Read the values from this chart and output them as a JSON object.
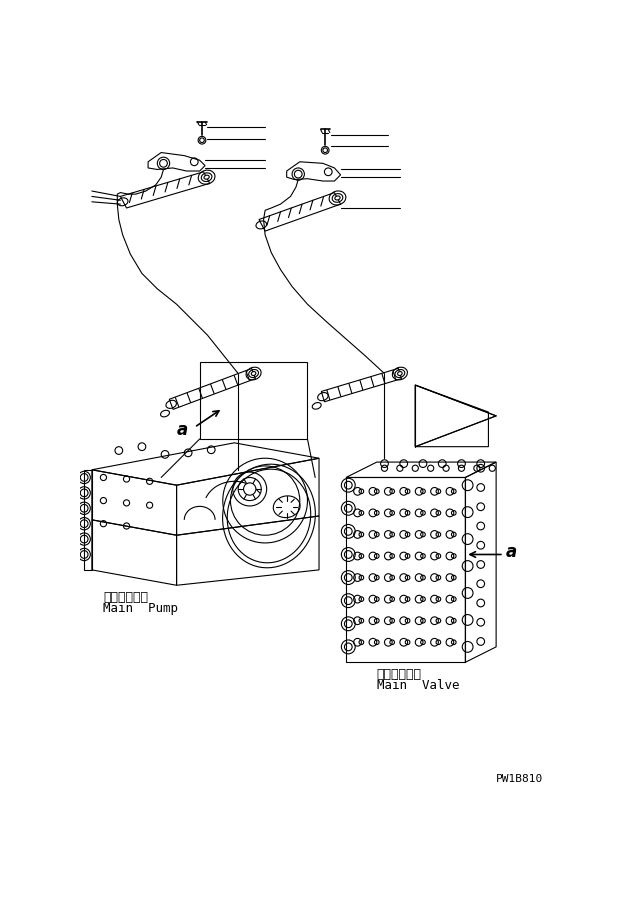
{
  "bg_color": "#ffffff",
  "line_color": "#000000",
  "part_code": "PW1B810",
  "labels": {
    "main_pump_jp": "メインポンプ",
    "main_pump_en": "Main  Pump",
    "main_valve_jp": "メインバルブ",
    "main_valve_en": "Main  Valve",
    "label_a": "a"
  },
  "figsize": [
    6.3,
    8.99
  ],
  "dpi": 100
}
